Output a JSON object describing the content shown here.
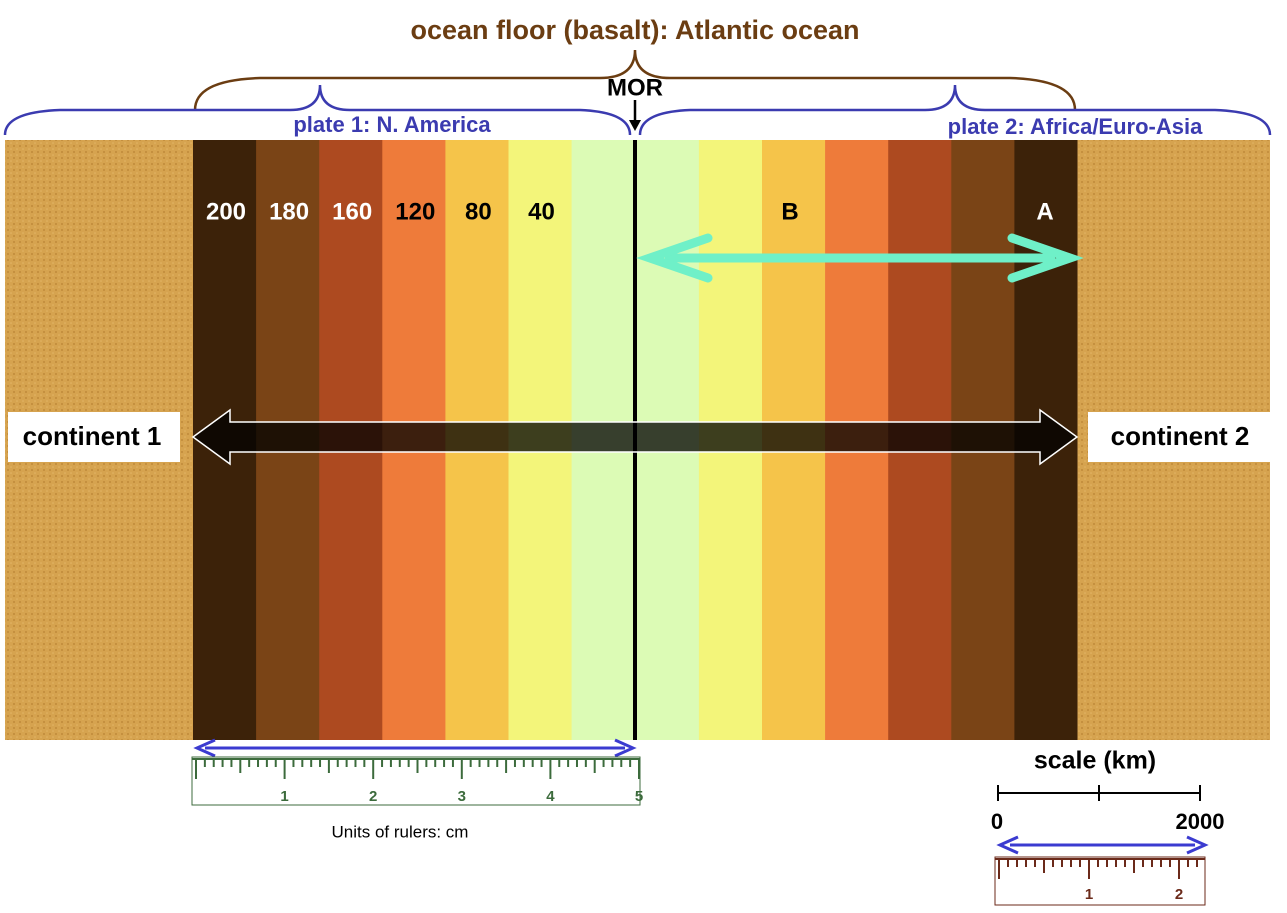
{
  "title": "ocean floor (basalt): Atlantic ocean",
  "mor_label": "MOR",
  "plates": [
    "plate 1: N. America",
    "plate 2: Africa/Euro-Asia"
  ],
  "age_labels": [
    200,
    180,
    160,
    120,
    80,
    40
  ],
  "point_labels": [
    "B",
    "A"
  ],
  "continents": [
    "continent 1",
    "continent 2"
  ],
  "ruler": {
    "labels": [
      1,
      2,
      3,
      4,
      5
    ],
    "note": "Units of rulers: cm"
  },
  "scale": {
    "title": "scale (km)",
    "min": 0,
    "max": 2000
  },
  "small_ruler": {
    "labels": [
      1,
      2
    ]
  }
}
